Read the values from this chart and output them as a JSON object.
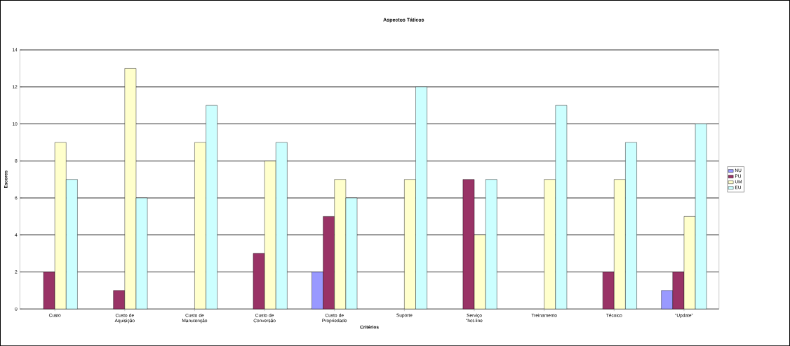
{
  "chart_data": {
    "type": "bar",
    "title": "Aspectos Táticos",
    "xlabel": "Critérios",
    "ylabel": "Escores",
    "categories": [
      "Custo",
      "Custo de Aquisição",
      "Custo de Manutenção",
      "Custo de Conversão",
      "Custo de Propriedade",
      "Suporte",
      "Serviço “hot-line",
      "Treinamento",
      "Técnico",
      "“Update”"
    ],
    "series": [
      {
        "name": "NU",
        "color": "#9999ff",
        "values": [
          0,
          0,
          0,
          0,
          2,
          0,
          0,
          0,
          0,
          1
        ]
      },
      {
        "name": "PU",
        "color": "#993366",
        "values": [
          2,
          1,
          0,
          3,
          5,
          0,
          7,
          0,
          2,
          2
        ]
      },
      {
        "name": "UM",
        "color": "#ffffcc",
        "values": [
          9,
          13,
          9,
          8,
          7,
          7,
          4,
          7,
          7,
          5
        ]
      },
      {
        "name": "EU",
        "color": "#ccffff",
        "values": [
          7,
          6,
          11,
          9,
          6,
          12,
          7,
          11,
          9,
          10
        ]
      }
    ],
    "ylim": [
      0,
      14
    ],
    "yticks": [
      0,
      2,
      4,
      6,
      8,
      10,
      12,
      14
    ],
    "grid": "y",
    "legend": "right"
  }
}
